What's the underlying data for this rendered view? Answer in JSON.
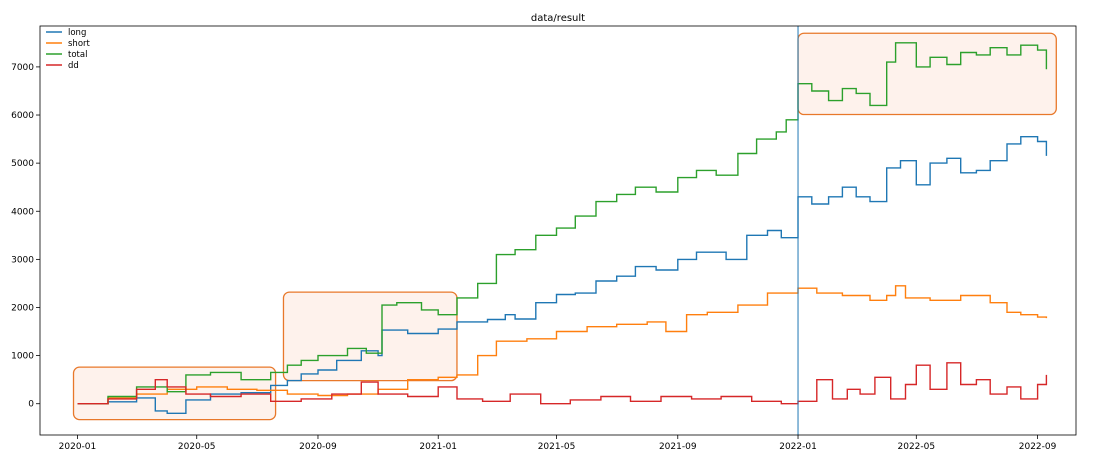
{
  "chart_data": {
    "type": "line",
    "title": "data/result",
    "xlabel": "",
    "ylabel": "",
    "x_ticks": [
      "2020-01",
      "2020-05",
      "2020-09",
      "2021-01",
      "2021-05",
      "2021-09",
      "2022-01",
      "2022-05",
      "2022-09"
    ],
    "y_ticks": [
      0,
      1000,
      2000,
      3000,
      4000,
      5000,
      6000,
      7000
    ],
    "xlim": [
      "2019-11-24",
      "2022-10-10"
    ],
    "ylim": [
      -650,
      7850
    ],
    "grid": false,
    "legend_position": "top-left",
    "vertical_line_date": "2022-01-01",
    "highlight_boxes": [
      {
        "x0": "2019-12-28",
        "x1": "2020-07-20",
        "y0": -330,
        "y1": 760
      },
      {
        "x0": "2020-07-28",
        "x1": "2021-01-20",
        "y0": 480,
        "y1": 2320
      },
      {
        "x0": "2022-01-01",
        "x1": "2022-09-20",
        "y0": 6010,
        "y1": 7700
      }
    ],
    "series": [
      {
        "name": "long",
        "color": "#1f77b4",
        "points": [
          [
            "2020-01-01",
            0
          ],
          [
            "2020-02-01",
            40
          ],
          [
            "2020-03-01",
            120
          ],
          [
            "2020-03-20",
            -150
          ],
          [
            "2020-04-01",
            -200
          ],
          [
            "2020-04-20",
            80
          ],
          [
            "2020-05-15",
            200
          ],
          [
            "2020-06-15",
            230
          ],
          [
            "2020-07-15",
            380
          ],
          [
            "2020-08-01",
            480
          ],
          [
            "2020-08-15",
            620
          ],
          [
            "2020-09-01",
            700
          ],
          [
            "2020-09-20",
            900
          ],
          [
            "2020-10-15",
            1100
          ],
          [
            "2020-11-01",
            1000
          ],
          [
            "2020-11-05",
            1530
          ],
          [
            "2020-12-01",
            1460
          ],
          [
            "2021-01-01",
            1550
          ],
          [
            "2021-01-20",
            1700
          ],
          [
            "2021-02-20",
            1750
          ],
          [
            "2021-03-10",
            1850
          ],
          [
            "2021-03-20",
            1760
          ],
          [
            "2021-04-10",
            2100
          ],
          [
            "2021-05-01",
            2270
          ],
          [
            "2021-05-20",
            2300
          ],
          [
            "2021-06-10",
            2550
          ],
          [
            "2021-07-01",
            2650
          ],
          [
            "2021-07-20",
            2850
          ],
          [
            "2021-08-10",
            2780
          ],
          [
            "2021-09-01",
            3000
          ],
          [
            "2021-09-20",
            3150
          ],
          [
            "2021-10-20",
            3000
          ],
          [
            "2021-11-10",
            3500
          ],
          [
            "2021-12-01",
            3600
          ],
          [
            "2021-12-15",
            3450
          ],
          [
            "2022-01-01",
            4300
          ],
          [
            "2022-01-15",
            4150
          ],
          [
            "2022-02-01",
            4300
          ],
          [
            "2022-02-15",
            4500
          ],
          [
            "2022-03-01",
            4300
          ],
          [
            "2022-03-15",
            4200
          ],
          [
            "2022-04-01",
            4900
          ],
          [
            "2022-04-15",
            5050
          ],
          [
            "2022-05-01",
            4550
          ],
          [
            "2022-05-15",
            5000
          ],
          [
            "2022-06-01",
            5100
          ],
          [
            "2022-06-15",
            4800
          ],
          [
            "2022-07-01",
            4850
          ],
          [
            "2022-07-15",
            5050
          ],
          [
            "2022-08-01",
            5400
          ],
          [
            "2022-08-15",
            5550
          ],
          [
            "2022-09-01",
            5450
          ],
          [
            "2022-09-10",
            5150
          ]
        ]
      },
      {
        "name": "short",
        "color": "#ff7f0e",
        "points": [
          [
            "2020-01-01",
            0
          ],
          [
            "2020-02-01",
            120
          ],
          [
            "2020-03-01",
            200
          ],
          [
            "2020-04-01",
            300
          ],
          [
            "2020-05-01",
            350
          ],
          [
            "2020-06-01",
            300
          ],
          [
            "2020-07-01",
            280
          ],
          [
            "2020-08-01",
            200
          ],
          [
            "2020-09-01",
            170
          ],
          [
            "2020-10-01",
            200
          ],
          [
            "2020-11-01",
            300
          ],
          [
            "2020-12-01",
            500
          ],
          [
            "2021-01-01",
            550
          ],
          [
            "2021-01-20",
            600
          ],
          [
            "2021-02-10",
            1000
          ],
          [
            "2021-03-01",
            1300
          ],
          [
            "2021-04-01",
            1350
          ],
          [
            "2021-05-01",
            1500
          ],
          [
            "2021-06-01",
            1600
          ],
          [
            "2021-07-01",
            1650
          ],
          [
            "2021-08-01",
            1700
          ],
          [
            "2021-08-20",
            1500
          ],
          [
            "2021-09-10",
            1850
          ],
          [
            "2021-10-01",
            1900
          ],
          [
            "2021-11-01",
            2050
          ],
          [
            "2021-12-01",
            2300
          ],
          [
            "2022-01-01",
            2400
          ],
          [
            "2022-01-20",
            2300
          ],
          [
            "2022-02-15",
            2250
          ],
          [
            "2022-03-15",
            2150
          ],
          [
            "2022-04-01",
            2250
          ],
          [
            "2022-04-10",
            2450
          ],
          [
            "2022-04-20",
            2200
          ],
          [
            "2022-05-15",
            2150
          ],
          [
            "2022-06-15",
            2250
          ],
          [
            "2022-07-15",
            2100
          ],
          [
            "2022-08-01",
            1900
          ],
          [
            "2022-08-15",
            1850
          ],
          [
            "2022-09-01",
            1800
          ],
          [
            "2022-09-10",
            1780
          ]
        ]
      },
      {
        "name": "total",
        "color": "#2ca02c",
        "points": [
          [
            "2020-01-01",
            0
          ],
          [
            "2020-02-01",
            150
          ],
          [
            "2020-03-01",
            350
          ],
          [
            "2020-04-01",
            250
          ],
          [
            "2020-04-20",
            600
          ],
          [
            "2020-05-15",
            650
          ],
          [
            "2020-06-15",
            500
          ],
          [
            "2020-07-15",
            650
          ],
          [
            "2020-08-01",
            800
          ],
          [
            "2020-08-15",
            900
          ],
          [
            "2020-09-01",
            1000
          ],
          [
            "2020-10-01",
            1150
          ],
          [
            "2020-10-20",
            1050
          ],
          [
            "2020-11-05",
            2050
          ],
          [
            "2020-11-20",
            2100
          ],
          [
            "2020-12-15",
            1950
          ],
          [
            "2021-01-01",
            1850
          ],
          [
            "2021-01-20",
            2200
          ],
          [
            "2021-02-10",
            2500
          ],
          [
            "2021-03-01",
            3100
          ],
          [
            "2021-03-20",
            3200
          ],
          [
            "2021-04-10",
            3500
          ],
          [
            "2021-05-01",
            3650
          ],
          [
            "2021-05-20",
            3900
          ],
          [
            "2021-06-10",
            4200
          ],
          [
            "2021-07-01",
            4350
          ],
          [
            "2021-07-20",
            4500
          ],
          [
            "2021-08-10",
            4400
          ],
          [
            "2021-09-01",
            4700
          ],
          [
            "2021-09-20",
            4850
          ],
          [
            "2021-10-10",
            4750
          ],
          [
            "2021-11-01",
            5200
          ],
          [
            "2021-11-20",
            5500
          ],
          [
            "2021-12-10",
            5650
          ],
          [
            "2021-12-20",
            5900
          ],
          [
            "2022-01-01",
            6650
          ],
          [
            "2022-01-15",
            6500
          ],
          [
            "2022-02-01",
            6300
          ],
          [
            "2022-02-15",
            6550
          ],
          [
            "2022-03-01",
            6450
          ],
          [
            "2022-03-15",
            6200
          ],
          [
            "2022-04-01",
            7100
          ],
          [
            "2022-04-10",
            7500
          ],
          [
            "2022-05-01",
            7000
          ],
          [
            "2022-05-15",
            7200
          ],
          [
            "2022-06-01",
            7050
          ],
          [
            "2022-06-15",
            7300
          ],
          [
            "2022-07-01",
            7250
          ],
          [
            "2022-07-15",
            7400
          ],
          [
            "2022-08-01",
            7250
          ],
          [
            "2022-08-15",
            7450
          ],
          [
            "2022-09-01",
            7350
          ],
          [
            "2022-09-10",
            6950
          ]
        ]
      },
      {
        "name": "dd",
        "color": "#d62728",
        "points": [
          [
            "2020-01-01",
            0
          ],
          [
            "2020-02-01",
            100
          ],
          [
            "2020-03-01",
            300
          ],
          [
            "2020-03-20",
            500
          ],
          [
            "2020-04-01",
            350
          ],
          [
            "2020-04-20",
            200
          ],
          [
            "2020-05-15",
            150
          ],
          [
            "2020-06-15",
            200
          ],
          [
            "2020-07-15",
            50
          ],
          [
            "2020-08-15",
            100
          ],
          [
            "2020-09-15",
            200
          ],
          [
            "2020-10-15",
            450
          ],
          [
            "2020-11-01",
            200
          ],
          [
            "2020-12-01",
            150
          ],
          [
            "2021-01-01",
            350
          ],
          [
            "2021-01-20",
            100
          ],
          [
            "2021-02-15",
            50
          ],
          [
            "2021-03-15",
            200
          ],
          [
            "2021-04-15",
            0
          ],
          [
            "2021-05-15",
            80
          ],
          [
            "2021-06-15",
            150
          ],
          [
            "2021-07-15",
            50
          ],
          [
            "2021-08-15",
            150
          ],
          [
            "2021-09-15",
            100
          ],
          [
            "2021-10-15",
            150
          ],
          [
            "2021-11-15",
            50
          ],
          [
            "2021-12-15",
            0
          ],
          [
            "2022-01-01",
            50
          ],
          [
            "2022-01-20",
            500
          ],
          [
            "2022-02-05",
            100
          ],
          [
            "2022-02-20",
            300
          ],
          [
            "2022-03-05",
            200
          ],
          [
            "2022-03-20",
            550
          ],
          [
            "2022-04-05",
            100
          ],
          [
            "2022-04-20",
            400
          ],
          [
            "2022-05-01",
            800
          ],
          [
            "2022-05-15",
            300
          ],
          [
            "2022-06-01",
            850
          ],
          [
            "2022-06-15",
            400
          ],
          [
            "2022-07-01",
            500
          ],
          [
            "2022-07-15",
            200
          ],
          [
            "2022-08-01",
            350
          ],
          [
            "2022-08-15",
            100
          ],
          [
            "2022-09-01",
            400
          ],
          [
            "2022-09-10",
            600
          ]
        ]
      }
    ]
  }
}
